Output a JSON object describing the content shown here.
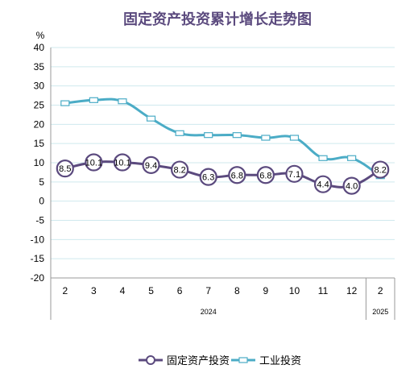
{
  "chart_data": {
    "type": "line",
    "title": "固定资产投资累计增长走势图",
    "ylabel": "%",
    "xlabel": "",
    "ylim": [
      -20,
      40
    ],
    "yticks": [
      -20,
      -15,
      -10,
      -5,
      0,
      5,
      10,
      15,
      20,
      25,
      30,
      35,
      40
    ],
    "grid": true,
    "legend_position": "bottom",
    "categories": [
      "2",
      "3",
      "4",
      "5",
      "6",
      "7",
      "8",
      "9",
      "10",
      "11",
      "12",
      "2"
    ],
    "year_groups": [
      {
        "label": "2024",
        "count": 11
      },
      {
        "label": "2025",
        "count": 1
      }
    ],
    "series": [
      {
        "name": "固定资产投资",
        "color": "#5b4a7e",
        "marker": "circle",
        "data_labels": true,
        "values": [
          8.5,
          10.1,
          10.1,
          9.4,
          8.2,
          6.3,
          6.8,
          6.8,
          7.1,
          4.4,
          4.0,
          8.2
        ],
        "labels": [
          "8.5",
          "10.1",
          "10.1",
          "9.4",
          "8.2",
          "6.3",
          "6.8",
          "6.8",
          "7.1",
          "4.4",
          "4.0",
          "8.2"
        ]
      },
      {
        "name": "工业投资",
        "color": "#4bacc6",
        "marker": "square",
        "data_labels": false,
        "values": [
          25.5,
          26.3,
          26.0,
          21.5,
          17.7,
          17.2,
          17.2,
          16.5,
          16.5,
          11.2,
          11.2,
          6.5
        ]
      }
    ]
  }
}
